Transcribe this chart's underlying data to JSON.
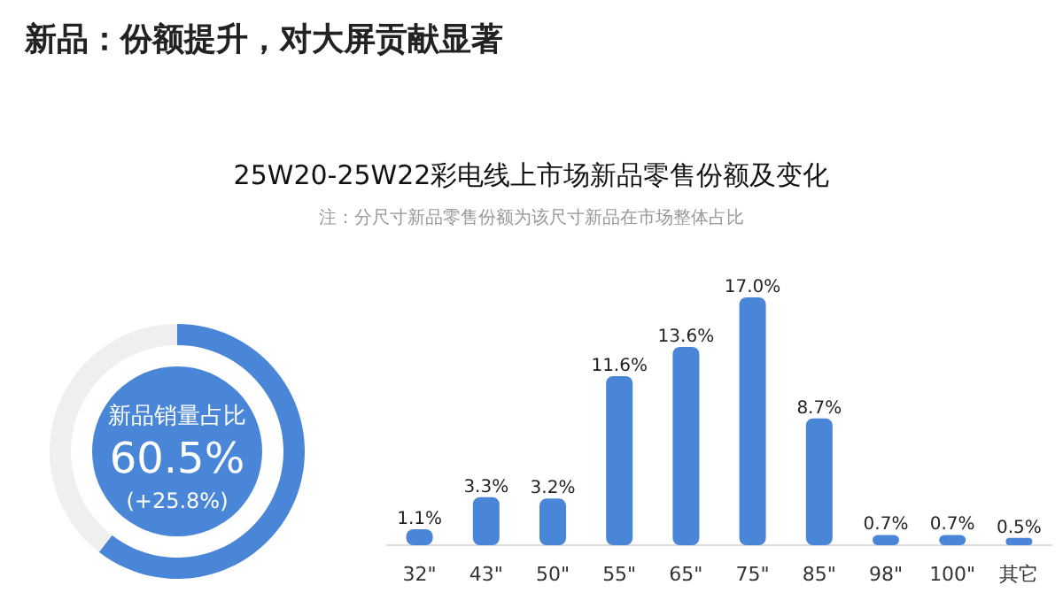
{
  "chart_data": [
    {
      "type": "donut",
      "title": "新品销量占比",
      "categories": [
        null,
        null
      ],
      "values": [
        60.5,
        39.5
      ],
      "colors": [
        "#4a86d8",
        "#efefef"
      ],
      "annotations": [
        "60.5%",
        "(+25.8%)"
      ]
    },
    {
      "type": "bar",
      "title": "25W20-25W22彩电线上市场新品零售份额及变化",
      "subtitle": "注：分尺寸新品零售份额为该尺寸新品在市场整体占比",
      "annotations": [
        "新品：份额提升，对大屏贡献显著"
      ],
      "categories": [
        "32\"",
        "43\"",
        "50\"",
        "55\"",
        "65\"",
        "75\"",
        "85\"",
        "98\"",
        "100\"",
        "其它"
      ],
      "values": [
        1.1,
        3.3,
        3.2,
        11.6,
        13.6,
        17.0,
        8.7,
        0.7,
        0.7,
        0.5
      ],
      "value_labels": [
        "1.1%",
        "3.3%",
        "3.2%",
        "11.6%",
        "13.6%",
        "17.0%",
        "8.7%",
        "0.7%",
        "0.7%",
        "0.5%"
      ],
      "color": "#4a86d8",
      "relative": false
    }
  ]
}
